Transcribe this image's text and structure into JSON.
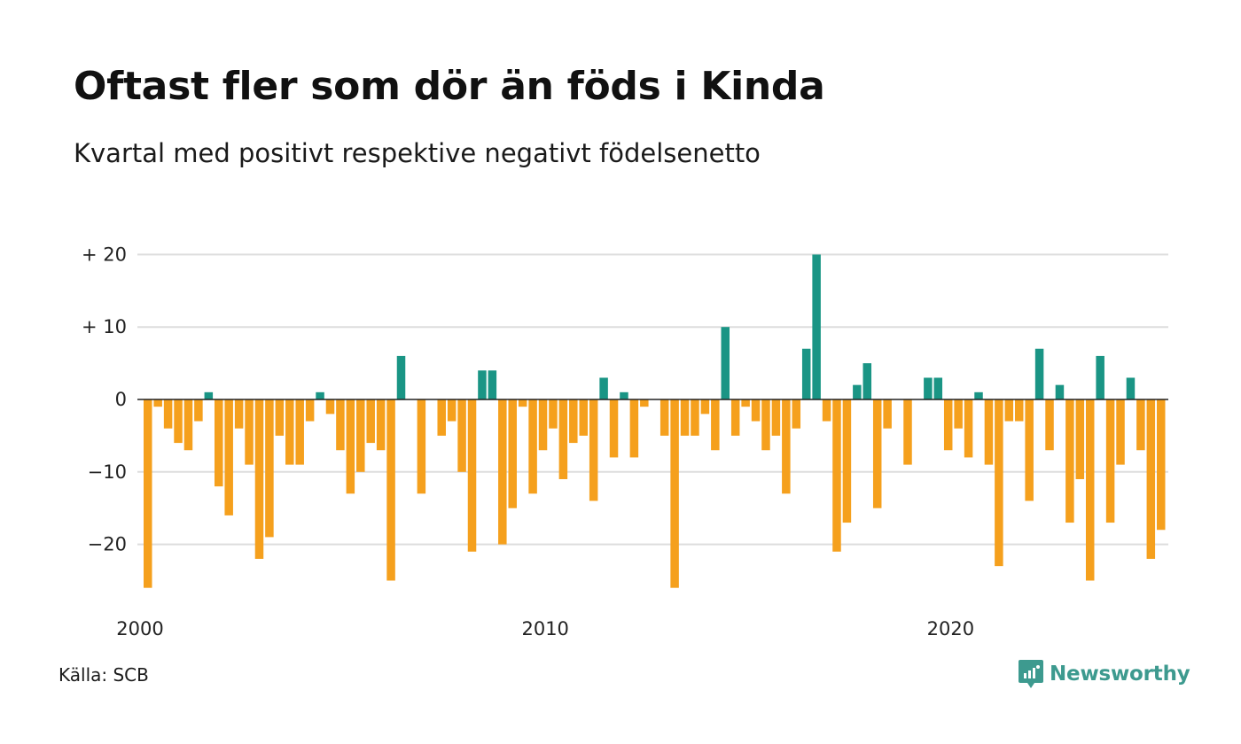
{
  "title": "Oftast fler som dör än föds i Kinda",
  "subtitle": "Kvartal med positivt respektive negativt födelsenetto",
  "source": "Källa: SCB",
  "brand": {
    "name": "Newsworthy",
    "icon": "newsworthy-logo-icon"
  },
  "colors": {
    "positive": "#1a9585",
    "negative": "#f5a01d",
    "grid": "#dddddd",
    "zero": "#222222",
    "brand": "#3d9a8f"
  },
  "chart_data": {
    "type": "bar",
    "title": "Oftast fler som dör än föds i Kinda",
    "subtitle": "Kvartal med positivt respektive negativt födelsenetto",
    "xlabel": "",
    "ylabel": "",
    "ylim": [
      -27,
      21
    ],
    "grid": true,
    "yticks": [
      {
        "value": 20,
        "label": "+ 20"
      },
      {
        "value": 10,
        "label": "+ 10"
      },
      {
        "value": 0,
        "label": "0"
      },
      {
        "value": -10,
        "label": "−10"
      },
      {
        "value": -20,
        "label": "−20"
      }
    ],
    "xticks": [
      {
        "index": 0,
        "label": "2000"
      },
      {
        "index": 40,
        "label": "2010"
      },
      {
        "index": 80,
        "label": "2020"
      }
    ],
    "start_period": "2000 Q1",
    "values": [
      -26,
      -1,
      -4,
      -6,
      -7,
      -3,
      1,
      -12,
      -16,
      -4,
      -9,
      -22,
      -19,
      -5,
      -9,
      -9,
      -3,
      1,
      -2,
      -7,
      -13,
      -10,
      -6,
      -7,
      -25,
      6,
      0,
      -13,
      0,
      -5,
      -3,
      -10,
      -21,
      4,
      4,
      -20,
      -15,
      -1,
      -13,
      -7,
      -4,
      -11,
      -6,
      -5,
      -14,
      3,
      -8,
      1,
      -8,
      -1,
      0,
      -5,
      -26,
      -5,
      -5,
      -2,
      -7,
      10,
      -5,
      -1,
      -3,
      -7,
      -5,
      -13,
      -4,
      7,
      20,
      -3,
      -21,
      -17,
      2,
      5,
      -15,
      -4,
      0,
      -9,
      0,
      3,
      3,
      -7,
      -4,
      -8,
      1,
      -9,
      -23,
      -3,
      -3,
      -14,
      7,
      -7,
      2,
      -17,
      -11,
      -25,
      6,
      -17,
      -9,
      3,
      -7,
      -22,
      -18
    ]
  }
}
